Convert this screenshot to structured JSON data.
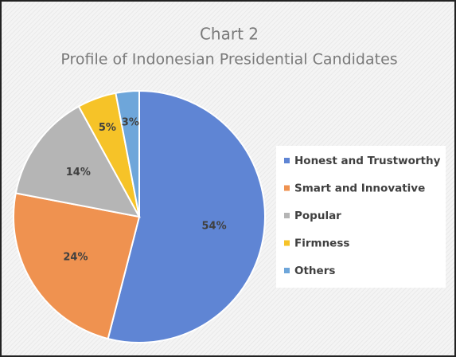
{
  "chart_data": {
    "type": "pie",
    "title": "Chart 2",
    "subtitle": "Profile of Indonesian Presidential Candidates",
    "categories": [
      "Honest and Trustworthy",
      "Smart and Innovative",
      "Popular",
      "Firmness",
      "Others"
    ],
    "values": [
      54,
      24,
      14,
      5,
      3
    ],
    "value_labels": [
      "54%",
      "24%",
      "14%",
      "5%",
      "3%"
    ],
    "colors": [
      "#5f85d4",
      "#ef9250",
      "#b5b5b5",
      "#f6c328",
      "#6ea6da"
    ],
    "legend": "right"
  }
}
